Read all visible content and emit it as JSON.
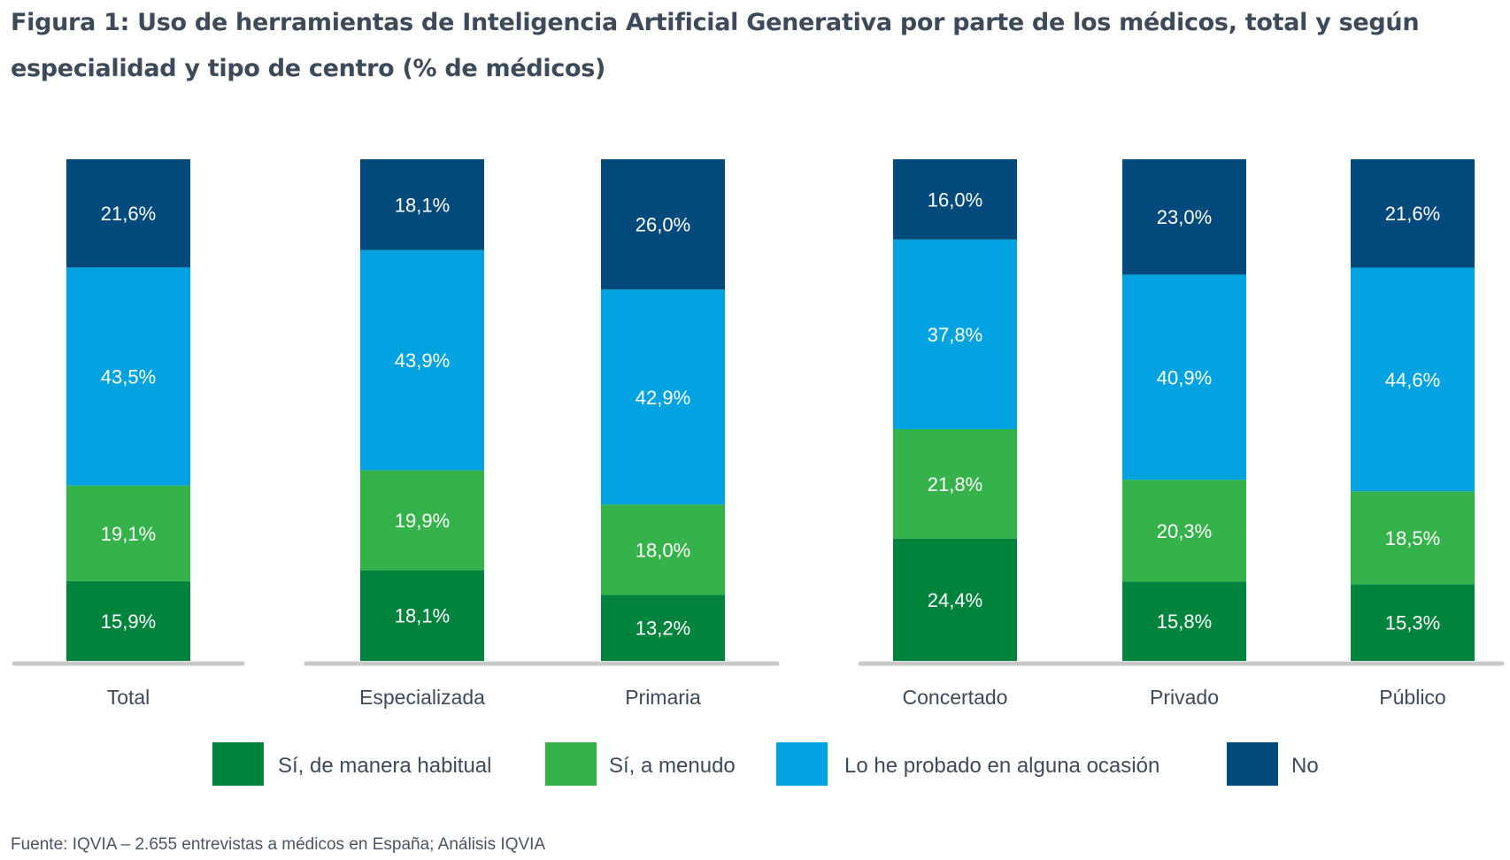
{
  "chart_data": {
    "type": "bar",
    "stacked": true,
    "title": "Figura 1: Uso de herramientas de Inteligencia Artificial Generativa por parte de los médicos, total y según especialidad y tipo de centro (% de médicos)",
    "xlabel": "",
    "ylabel": "",
    "ylim": [
      0,
      100
    ],
    "grid": false,
    "legend_position": "bottom",
    "categories": [
      "Total",
      "Especializada",
      "Primaria",
      "Concertado",
      "Privado",
      "Público"
    ],
    "groups": [
      [
        "Total"
      ],
      [
        "Especializada",
        "Primaria"
      ],
      [
        "Concertado",
        "Privado",
        "Público"
      ]
    ],
    "series": [
      {
        "name": "Sí, de manera habitual",
        "color": "#00843d",
        "values": [
          15.9,
          18.1,
          13.2,
          24.4,
          15.8,
          15.3
        ],
        "labels": [
          "15,9%",
          "18,1%",
          "13,2%",
          "24,4%",
          "15,8%",
          "15,3%"
        ]
      },
      {
        "name": "Sí, a menudo",
        "color": "#35b34a",
        "values": [
          19.1,
          19.9,
          18.0,
          21.8,
          20.3,
          18.5
        ],
        "labels": [
          "19,1%",
          "19,9%",
          "18,0%",
          "21,8%",
          "20,3%",
          "18,5%"
        ]
      },
      {
        "name": "Lo he probado en alguna ocasión",
        "color": "#00a3e0",
        "values": [
          43.5,
          43.9,
          42.9,
          37.8,
          40.9,
          44.6
        ],
        "labels": [
          "43,5%",
          "43,9%",
          "42,9%",
          "37,8%",
          "40,9%",
          "44,6%"
        ]
      },
      {
        "name": "No",
        "color": "#034a7c",
        "values": [
          21.6,
          18.1,
          26.0,
          16.0,
          23.0,
          21.6
        ],
        "labels": [
          "21,6%",
          "18,1%",
          "26,0%",
          "16,0%",
          "23,0%",
          "21,6%"
        ]
      }
    ],
    "source": "Fuente: IQVIA – 2.655 entrevistas a médicos en España; Análisis IQVIA"
  }
}
